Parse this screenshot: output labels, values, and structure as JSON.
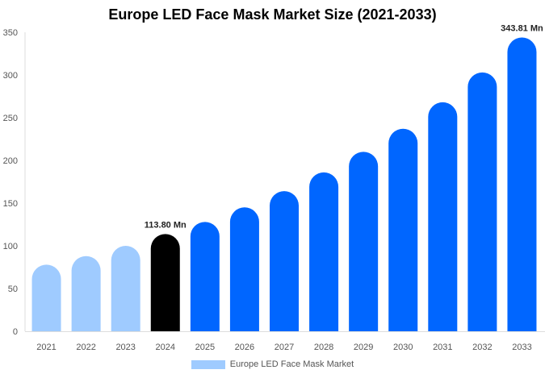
{
  "chart_data": {
    "type": "bar",
    "title": "Europe LED Face Mask Market Size (2021-2033)",
    "categories": [
      "2021",
      "2022",
      "2023",
      "2024",
      "2025",
      "2026",
      "2027",
      "2028",
      "2029",
      "2030",
      "2031",
      "2032",
      "2033"
    ],
    "series": [
      {
        "name": "Europe LED Face Mask Market",
        "values": [
          78,
          88,
          100,
          113.8,
          128,
          145,
          164,
          186,
          210,
          237,
          268,
          303,
          343.81
        ]
      }
    ],
    "bar_colors": [
      "#9fcbff",
      "#9fcbff",
      "#9fcbff",
      "#000000",
      "#0066ff",
      "#0066ff",
      "#0066ff",
      "#0066ff",
      "#0066ff",
      "#0066ff",
      "#0066ff",
      "#0066ff",
      "#0066ff"
    ],
    "data_labels": {
      "3": "113.80 Mn",
      "12": "343.81 Mn"
    },
    "yticks": [
      0,
      50,
      100,
      150,
      200,
      250,
      300,
      350
    ],
    "ylim": [
      0,
      350
    ],
    "xlabel": "",
    "ylabel": "",
    "grid": false,
    "legend": "bottom"
  }
}
